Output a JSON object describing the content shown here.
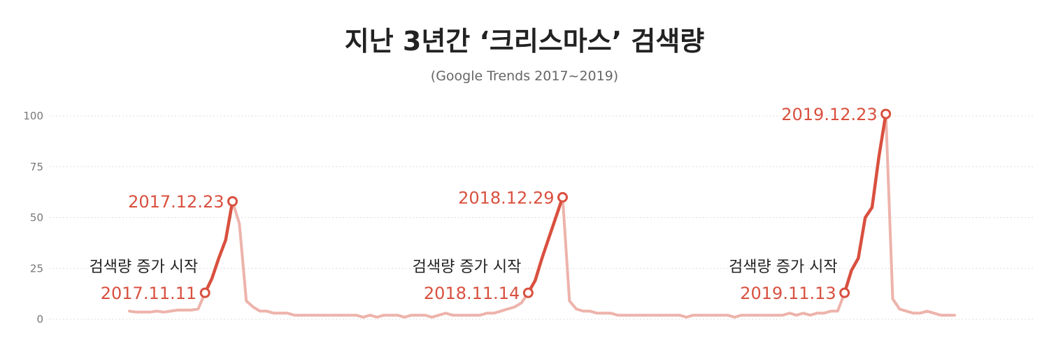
{
  "title": "지난 3년간 ‘크리스마스’ 검색량",
  "subtitle": "(Google Trends 2017~2019)",
  "colors": {
    "base_line": "#edb3ab",
    "highlight": "#d9503f",
    "grid": "#dddddd",
    "text": "#222222"
  },
  "chart_data": {
    "type": "line",
    "title": "지난 3년간 ‘크리스마스’ 검색량",
    "subtitle": "(Google Trends 2017~2019)",
    "ylim": [
      0,
      100
    ],
    "yticks": [
      0,
      25,
      50,
      75,
      100
    ],
    "grid": true,
    "values": [
      4,
      3.5,
      3.5,
      3.5,
      4,
      3.5,
      4,
      4.5,
      4.5,
      4.5,
      5,
      13,
      20,
      30,
      39,
      58,
      47,
      9,
      6,
      4,
      4,
      3,
      3,
      3,
      2,
      2,
      2,
      2,
      2,
      2,
      2,
      2,
      2,
      2,
      1,
      2,
      1,
      2,
      2,
      2,
      1,
      2,
      2,
      2,
      1,
      2,
      3,
      2,
      2,
      2,
      2,
      2,
      3,
      3,
      4,
      5,
      6,
      8,
      13,
      19,
      30,
      40,
      50,
      60,
      9,
      5,
      4,
      4,
      3,
      3,
      3,
      2,
      2,
      2,
      2,
      2,
      2,
      2,
      2,
      2,
      2,
      1,
      2,
      2,
      2,
      2,
      2,
      2,
      1,
      2,
      2,
      2,
      2,
      2,
      2,
      2,
      3,
      2,
      3,
      2,
      3,
      3,
      4,
      4,
      13,
      24,
      30,
      50,
      55,
      80,
      101,
      10,
      5,
      4,
      3,
      3,
      4,
      3,
      2,
      2,
      2
    ],
    "highlights": [
      {
        "start_index": 11,
        "peak_index": 15,
        "start_label": "2017.11.11",
        "start_caption": "검색량 증가 시작",
        "peak_label": "2017.12.23"
      },
      {
        "start_index": 58,
        "peak_index": 63,
        "start_label": "2018.11.14",
        "start_caption": "검색량 증가 시작",
        "peak_label": "2018.12.29"
      },
      {
        "start_index": 104,
        "peak_index": 110,
        "start_label": "2019.11.13",
        "start_caption": "검색량 증가 시작",
        "peak_label": "2019.12.23"
      }
    ]
  }
}
